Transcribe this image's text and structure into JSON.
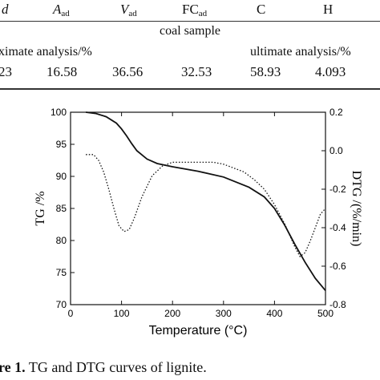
{
  "table": {
    "header": {
      "c1": {
        "letter": "d",
        "sub": ""
      },
      "c2": {
        "letter": "A",
        "sub": "ad"
      },
      "c3": {
        "letter": "V",
        "sub": "ad"
      },
      "c4": {
        "letter": "FC",
        "sub": "ad"
      },
      "c5": {
        "letter": "C",
        "sub": ""
      },
      "c6": {
        "letter": "H",
        "sub": ""
      }
    },
    "sample_label": "coal sample",
    "proximate_label": "ximate analysis/%",
    "ultimate_label": "ultimate analysis/%",
    "values": [
      "23",
      "16.58",
      "36.56",
      "32.53",
      "58.93",
      "4.093"
    ]
  },
  "chart_data": {
    "type": "line",
    "xlabel": "Temperature (°C)",
    "ylabel_left": "TG /%",
    "ylabel_right": "DTG /(%/min)",
    "xlim": [
      0,
      500
    ],
    "ylim_left": [
      70,
      100
    ],
    "ylim_right": [
      -0.8,
      0.2
    ],
    "x_ticks": [
      "0",
      "100",
      "200",
      "300",
      "400",
      "500"
    ],
    "y_left_ticks": [
      "70",
      "75",
      "80",
      "85",
      "90",
      "95",
      "100"
    ],
    "y_right_ticks": [
      "-0.8",
      "-0.6",
      "-0.4",
      "-0.2",
      "0.0",
      "0.2"
    ],
    "series": [
      {
        "axis": "left",
        "style": "solid",
        "x": [
          30,
          50,
          70,
          90,
          100,
          110,
          120,
          130,
          150,
          170,
          200,
          250,
          300,
          350,
          380,
          400,
          420,
          440,
          460,
          480,
          500
        ],
        "y": [
          100,
          99.8,
          99.3,
          98.3,
          97.4,
          96.3,
          95.1,
          94.0,
          92.7,
          92.0,
          91.5,
          90.8,
          89.9,
          88.3,
          86.8,
          85.0,
          82.4,
          79.4,
          76.6,
          74.1,
          72.2
        ]
      },
      {
        "axis": "right",
        "style": "dotted",
        "x": [
          30,
          45,
          55,
          65,
          75,
          85,
          95,
          105,
          115,
          125,
          140,
          160,
          180,
          200,
          240,
          280,
          300,
          320,
          340,
          360,
          380,
          400,
          420,
          440,
          450,
          460,
          470,
          480,
          490,
          500
        ],
        "y": [
          -0.02,
          -0.02,
          -0.05,
          -0.11,
          -0.2,
          -0.3,
          -0.39,
          -0.42,
          -0.41,
          -0.35,
          -0.24,
          -0.13,
          -0.08,
          -0.06,
          -0.06,
          -0.06,
          -0.07,
          -0.09,
          -0.11,
          -0.15,
          -0.2,
          -0.28,
          -0.38,
          -0.5,
          -0.55,
          -0.53,
          -0.47,
          -0.4,
          -0.33,
          -0.3
        ]
      }
    ]
  },
  "caption": {
    "label": "re 1.",
    "text": " TG and DTG curves of lignite."
  }
}
